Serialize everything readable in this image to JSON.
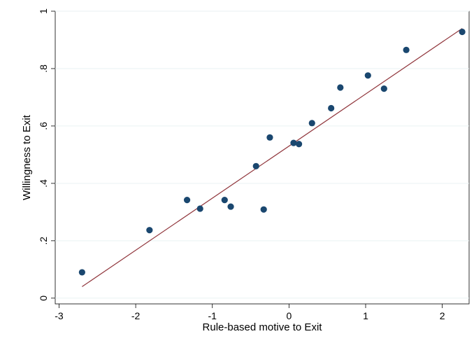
{
  "chart_data": {
    "type": "scatter",
    "title": "",
    "xlabel": "Rule-based motive to Exit",
    "ylabel": "Willingness to Exit",
    "xlim": [
      -3.05,
      2.35
    ],
    "ylim": [
      -0.02,
      1.0
    ],
    "x_ticks": [
      -3,
      -2,
      -1,
      0,
      1,
      2
    ],
    "x_tick_labels": [
      "-3",
      "-2",
      "-1",
      "0",
      "1",
      "2"
    ],
    "y_ticks": [
      0,
      0.2,
      0.4,
      0.6,
      0.8,
      1
    ],
    "y_tick_labels": [
      "0",
      ".2",
      ".4",
      ".6",
      ".8",
      "1"
    ],
    "grid": true,
    "series": [
      {
        "marker_color": "#1a476f",
        "points": [
          {
            "x": -2.7,
            "y": 0.09
          },
          {
            "x": -1.82,
            "y": 0.237
          },
          {
            "x": -1.33,
            "y": 0.342
          },
          {
            "x": -1.16,
            "y": 0.312
          },
          {
            "x": -0.84,
            "y": 0.342
          },
          {
            "x": -0.76,
            "y": 0.319
          },
          {
            "x": -0.43,
            "y": 0.46
          },
          {
            "x": -0.33,
            "y": 0.309
          },
          {
            "x": -0.25,
            "y": 0.56
          },
          {
            "x": 0.06,
            "y": 0.541
          },
          {
            "x": 0.13,
            "y": 0.537
          },
          {
            "x": 0.3,
            "y": 0.61
          },
          {
            "x": 0.55,
            "y": 0.662
          },
          {
            "x": 0.67,
            "y": 0.734
          },
          {
            "x": 1.03,
            "y": 0.776
          },
          {
            "x": 1.24,
            "y": 0.73
          },
          {
            "x": 1.53,
            "y": 0.865
          },
          {
            "x": 2.26,
            "y": 0.928
          }
        ]
      }
    ],
    "fit_line": {
      "color": "#90353b",
      "points": [
        {
          "x": -2.7,
          "y": 0.04
        },
        {
          "x": 2.26,
          "y": 0.94
        }
      ]
    }
  }
}
